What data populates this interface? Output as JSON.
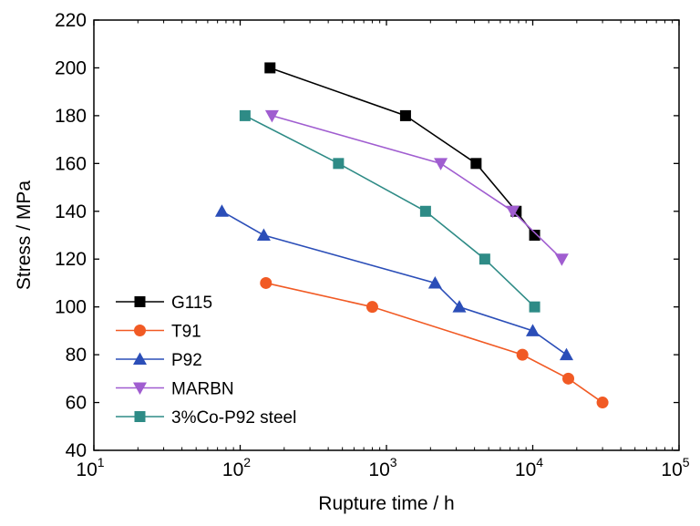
{
  "chart_data": {
    "type": "line",
    "xlabel": "Rupture time / h",
    "ylabel": "Stress / MPa",
    "xscale": "log",
    "xlim": [
      10,
      100000
    ],
    "ylim": [
      40,
      220
    ],
    "x_ticks": [
      {
        "value": 10,
        "base": "10",
        "exp": "1"
      },
      {
        "value": 100,
        "base": "10",
        "exp": "2"
      },
      {
        "value": 1000,
        "base": "10",
        "exp": "3"
      },
      {
        "value": 10000,
        "base": "10",
        "exp": "4"
      },
      {
        "value": 100000,
        "base": "10",
        "exp": "5"
      }
    ],
    "y_ticks": [
      "40",
      "60",
      "80",
      "100",
      "120",
      "140",
      "160",
      "180",
      "200",
      "220"
    ],
    "legend_position": "lower-left",
    "series": [
      {
        "name": "G115",
        "color": "#000000",
        "marker": "square",
        "points": [
          [
            160,
            200
          ],
          [
            1350,
            180
          ],
          [
            4100,
            160
          ],
          [
            7700,
            140
          ],
          [
            10300,
            130
          ]
        ]
      },
      {
        "name": "T91",
        "color": "#f15a24",
        "marker": "circle",
        "points": [
          [
            150,
            110
          ],
          [
            800,
            100
          ],
          [
            8500,
            80
          ],
          [
            17500,
            70
          ],
          [
            30000,
            60
          ]
        ]
      },
      {
        "name": "P92",
        "color": "#2b4eb8",
        "marker": "triangle-up",
        "points": [
          [
            75,
            140
          ],
          [
            145,
            130
          ],
          [
            2150,
            110
          ],
          [
            3150,
            100
          ],
          [
            10000,
            90
          ],
          [
            17000,
            80
          ]
        ]
      },
      {
        "name": "MARBN",
        "color": "#a05dd0",
        "marker": "triangle-down",
        "points": [
          [
            165,
            180
          ],
          [
            2350,
            160
          ],
          [
            7300,
            140
          ],
          [
            15800,
            120
          ]
        ]
      },
      {
        "name": "3%Co-P92 steel",
        "color": "#2e8b86",
        "marker": "square",
        "points": [
          [
            108,
            180
          ],
          [
            470,
            160
          ],
          [
            1850,
            140
          ],
          [
            4700,
            120
          ],
          [
            10300,
            100
          ]
        ]
      }
    ]
  }
}
